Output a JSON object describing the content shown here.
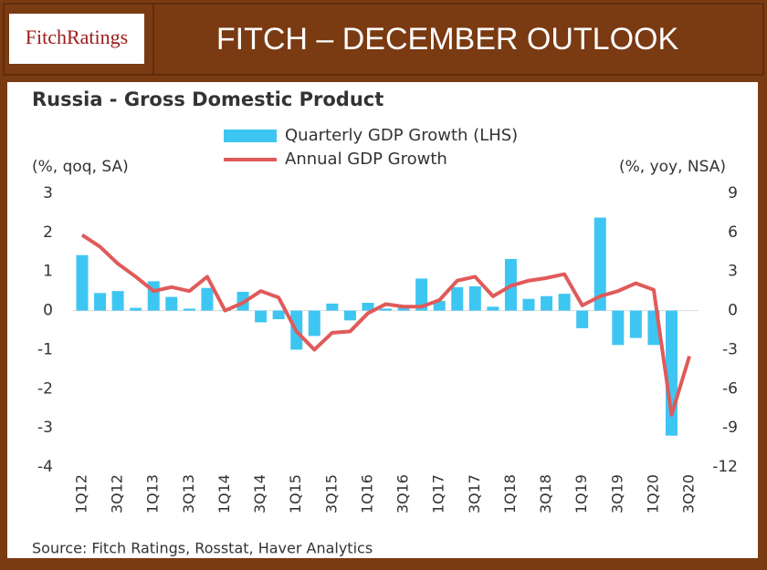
{
  "header": {
    "logo": "FitchRatings",
    "title": "FITCH – DECEMBER OUTLOOK"
  },
  "chart_data": {
    "type": "bar",
    "title": "Russia - Gross Domestic Product",
    "left_axis_label": "(%, qoq, SA)",
    "right_axis_label": "(%, yoy, NSA)",
    "source": "Source: Fitch Ratings, Rosstat, Haver Analytics",
    "categories": [
      "1Q12",
      null,
      "3Q12",
      null,
      "1Q13",
      null,
      "3Q13",
      null,
      "1Q14",
      null,
      "3Q14",
      null,
      "1Q15",
      null,
      "3Q15",
      null,
      "1Q16",
      null,
      "3Q16",
      null,
      "1Q17",
      null,
      "3Q17",
      null,
      "1Q18",
      null,
      "3Q18",
      null,
      "1Q19",
      null,
      "3Q19",
      null,
      "1Q20",
      null,
      "3Q20"
    ],
    "series": [
      {
        "name": "Quarterly GDP Growth (LHS)",
        "type": "bar",
        "color": "#3ec6f2",
        "values": [
          1.42,
          0.45,
          0.5,
          0.07,
          0.75,
          0.35,
          0.05,
          0.58,
          0.0,
          0.48,
          -0.3,
          -0.22,
          -1.0,
          -0.65,
          0.18,
          -0.25,
          0.2,
          0.05,
          0.1,
          0.82,
          0.25,
          0.6,
          0.62,
          0.1,
          1.32,
          0.3,
          0.37,
          0.43,
          -0.45,
          2.38,
          -0.88,
          -0.7,
          -0.88,
          -3.2,
          null
        ]
      },
      {
        "name": "Annual GDP Growth",
        "type": "line",
        "axis": "y2",
        "color": "#e05a5a",
        "values": [
          5.8,
          4.9,
          3.6,
          2.6,
          1.5,
          1.8,
          1.5,
          2.6,
          0.0,
          0.6,
          1.5,
          1.0,
          -1.6,
          -3.0,
          -1.7,
          -1.6,
          -0.2,
          0.5,
          0.3,
          0.3,
          0.8,
          2.3,
          2.6,
          1.1,
          1.9,
          2.3,
          2.5,
          2.8,
          0.4,
          1.1,
          1.5,
          2.1,
          1.6,
          -8.0,
          -3.5
        ]
      }
    ],
    "ylim": [
      -4,
      3
    ],
    "yticks": [
      -4,
      -3,
      -2,
      -1,
      0,
      1,
      2,
      3
    ],
    "y2lim": [
      -12,
      9
    ],
    "y2ticks": [
      -12,
      -9,
      -6,
      -3,
      0,
      3,
      6,
      9
    ]
  }
}
